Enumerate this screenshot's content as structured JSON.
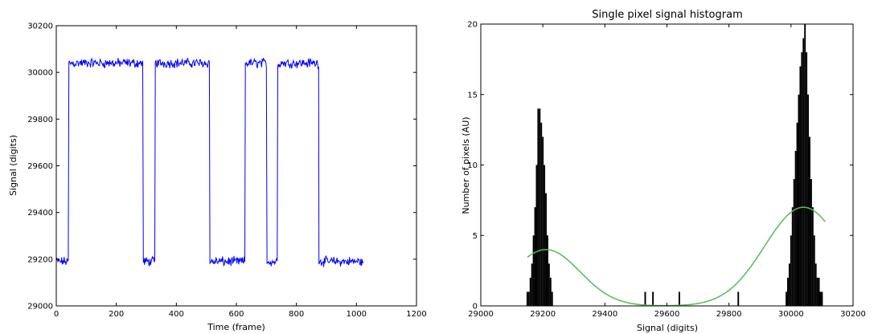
{
  "chart_data": [
    {
      "type": "line",
      "title": "",
      "xlabel": "Time (frame)",
      "ylabel": "Signal (digits)",
      "xlim": [
        0,
        1200
      ],
      "ylim": [
        29000,
        30200
      ],
      "xticks": [
        0,
        200,
        400,
        600,
        800,
        1000,
        1200
      ],
      "yticks": [
        29000,
        29200,
        29400,
        29600,
        29800,
        30000,
        30200
      ],
      "grid": false,
      "series": [
        {
          "color": "#0000ff",
          "levels": {
            "low": 29190,
            "high": 30040
          },
          "segments": [
            {
              "x": [
                0,
                42
              ],
              "level": "low"
            },
            {
              "x": [
                42,
                290
              ],
              "level": "high"
            },
            {
              "x": [
                290,
                330
              ],
              "level": "low"
            },
            {
              "x": [
                330,
                512
              ],
              "level": "high"
            },
            {
              "x": [
                512,
                630
              ],
              "level": "low"
            },
            {
              "x": [
                630,
                702
              ],
              "level": "high"
            },
            {
              "x": [
                702,
                738
              ],
              "level": "low"
            },
            {
              "x": [
                738,
                875
              ],
              "level": "high"
            },
            {
              "x": [
                875,
                1022
              ],
              "level": "low"
            }
          ]
        }
      ]
    },
    {
      "type": "bar",
      "title": "Single pixel signal histogram",
      "xlabel": "Signal (digits)",
      "ylabel": "Number of pixels (AU)",
      "xlim": [
        29000,
        30200
      ],
      "ylim": [
        0,
        20
      ],
      "xticks": [
        29000,
        29200,
        29400,
        29600,
        29800,
        30000,
        30200
      ],
      "yticks": [
        0,
        5,
        10,
        15,
        20
      ],
      "grid": false,
      "histogram": {
        "color": "#000000",
        "bins": [
          {
            "x": 29150,
            "count": 1
          },
          {
            "x": 29155,
            "count": 1
          },
          {
            "x": 29160,
            "count": 2
          },
          {
            "x": 29165,
            "count": 3
          },
          {
            "x": 29170,
            "count": 5
          },
          {
            "x": 29175,
            "count": 7
          },
          {
            "x": 29180,
            "count": 10
          },
          {
            "x": 29185,
            "count": 14
          },
          {
            "x": 29190,
            "count": 14
          },
          {
            "x": 29195,
            "count": 13
          },
          {
            "x": 29200,
            "count": 12
          },
          {
            "x": 29205,
            "count": 10
          },
          {
            "x": 29210,
            "count": 8
          },
          {
            "x": 29215,
            "count": 5
          },
          {
            "x": 29220,
            "count": 3
          },
          {
            "x": 29225,
            "count": 2
          },
          {
            "x": 29230,
            "count": 1
          },
          {
            "x": 29530,
            "count": 1
          },
          {
            "x": 29555,
            "count": 1
          },
          {
            "x": 29640,
            "count": 1
          },
          {
            "x": 29830,
            "count": 1
          },
          {
            "x": 29985,
            "count": 1
          },
          {
            "x": 29990,
            "count": 2
          },
          {
            "x": 29995,
            "count": 3
          },
          {
            "x": 30000,
            "count": 5
          },
          {
            "x": 30005,
            "count": 7
          },
          {
            "x": 30010,
            "count": 9
          },
          {
            "x": 30015,
            "count": 11
          },
          {
            "x": 30020,
            "count": 13
          },
          {
            "x": 30025,
            "count": 15
          },
          {
            "x": 30030,
            "count": 17
          },
          {
            "x": 30035,
            "count": 18
          },
          {
            "x": 30040,
            "count": 19
          },
          {
            "x": 30045,
            "count": 20
          },
          {
            "x": 30050,
            "count": 18
          },
          {
            "x": 30055,
            "count": 15
          },
          {
            "x": 30060,
            "count": 12
          },
          {
            "x": 30065,
            "count": 9
          },
          {
            "x": 30070,
            "count": 7
          },
          {
            "x": 30075,
            "count": 5
          },
          {
            "x": 30080,
            "count": 3
          },
          {
            "x": 30085,
            "count": 2
          },
          {
            "x": 30090,
            "count": 2
          },
          {
            "x": 30095,
            "count": 1
          },
          {
            "x": 30100,
            "count": 1
          }
        ]
      },
      "fit": {
        "color": "#55bb55",
        "x_range": [
          29150,
          30110
        ],
        "components": [
          {
            "mean": 29210,
            "sigma": 110,
            "amplitude": 4.0
          },
          {
            "mean": 30040,
            "sigma": 125,
            "amplitude": 7.0
          }
        ]
      }
    }
  ]
}
